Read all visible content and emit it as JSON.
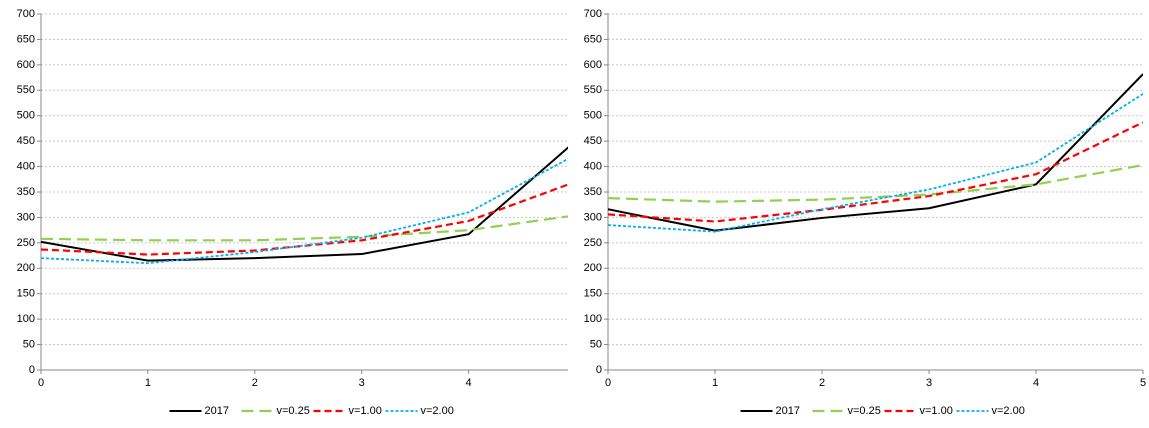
{
  "chart_data": [
    {
      "type": "line",
      "x": [
        0,
        1,
        2,
        3,
        4,
        5
      ],
      "xlim": [
        0,
        4.93
      ],
      "xticks": [
        0,
        1,
        2,
        3,
        4
      ],
      "ylim": [
        0,
        700
      ],
      "yticks": [
        0,
        50,
        100,
        150,
        200,
        250,
        300,
        350,
        400,
        450,
        500,
        550,
        600,
        650,
        700
      ],
      "grid": true,
      "series": [
        {
          "name": "2017",
          "color": "#000000",
          "dash": "solid",
          "values": [
            252,
            215,
            220,
            228,
            267,
            450
          ]
        },
        {
          "name": "v=0.25",
          "color": "#92d050",
          "dash": "long",
          "values": [
            258,
            255,
            255,
            262,
            275,
            304
          ]
        },
        {
          "name": "v=1.00",
          "color": "#ff0000",
          "dash": "medium",
          "values": [
            237,
            227,
            235,
            255,
            293,
            370
          ]
        },
        {
          "name": "v=2.00",
          "color": "#00b0f0",
          "dash": "short",
          "values": [
            220,
            210,
            232,
            260,
            310,
            423
          ]
        }
      ]
    },
    {
      "type": "line",
      "x": [
        0,
        1,
        2,
        3,
        4,
        5
      ],
      "xlim": [
        0,
        5
      ],
      "xticks": [
        0,
        1,
        2,
        3,
        4,
        5
      ],
      "ylim": [
        0,
        700
      ],
      "yticks": [
        0,
        50,
        100,
        150,
        200,
        250,
        300,
        350,
        400,
        450,
        500,
        550,
        600,
        650,
        700
      ],
      "grid": true,
      "series": [
        {
          "name": "2017",
          "color": "#000000",
          "dash": "solid",
          "values": [
            316,
            274,
            299,
            318,
            365,
            582
          ]
        },
        {
          "name": "v=0.25",
          "color": "#92d050",
          "dash": "long",
          "values": [
            338,
            331,
            335,
            345,
            365,
            403
          ]
        },
        {
          "name": "v=1.00",
          "color": "#ff0000",
          "dash": "medium",
          "values": [
            306,
            292,
            315,
            342,
            385,
            487
          ]
        },
        {
          "name": "v=2.00",
          "color": "#00b0f0",
          "dash": "short",
          "values": [
            285,
            272,
            316,
            355,
            408,
            543
          ]
        }
      ]
    }
  ]
}
